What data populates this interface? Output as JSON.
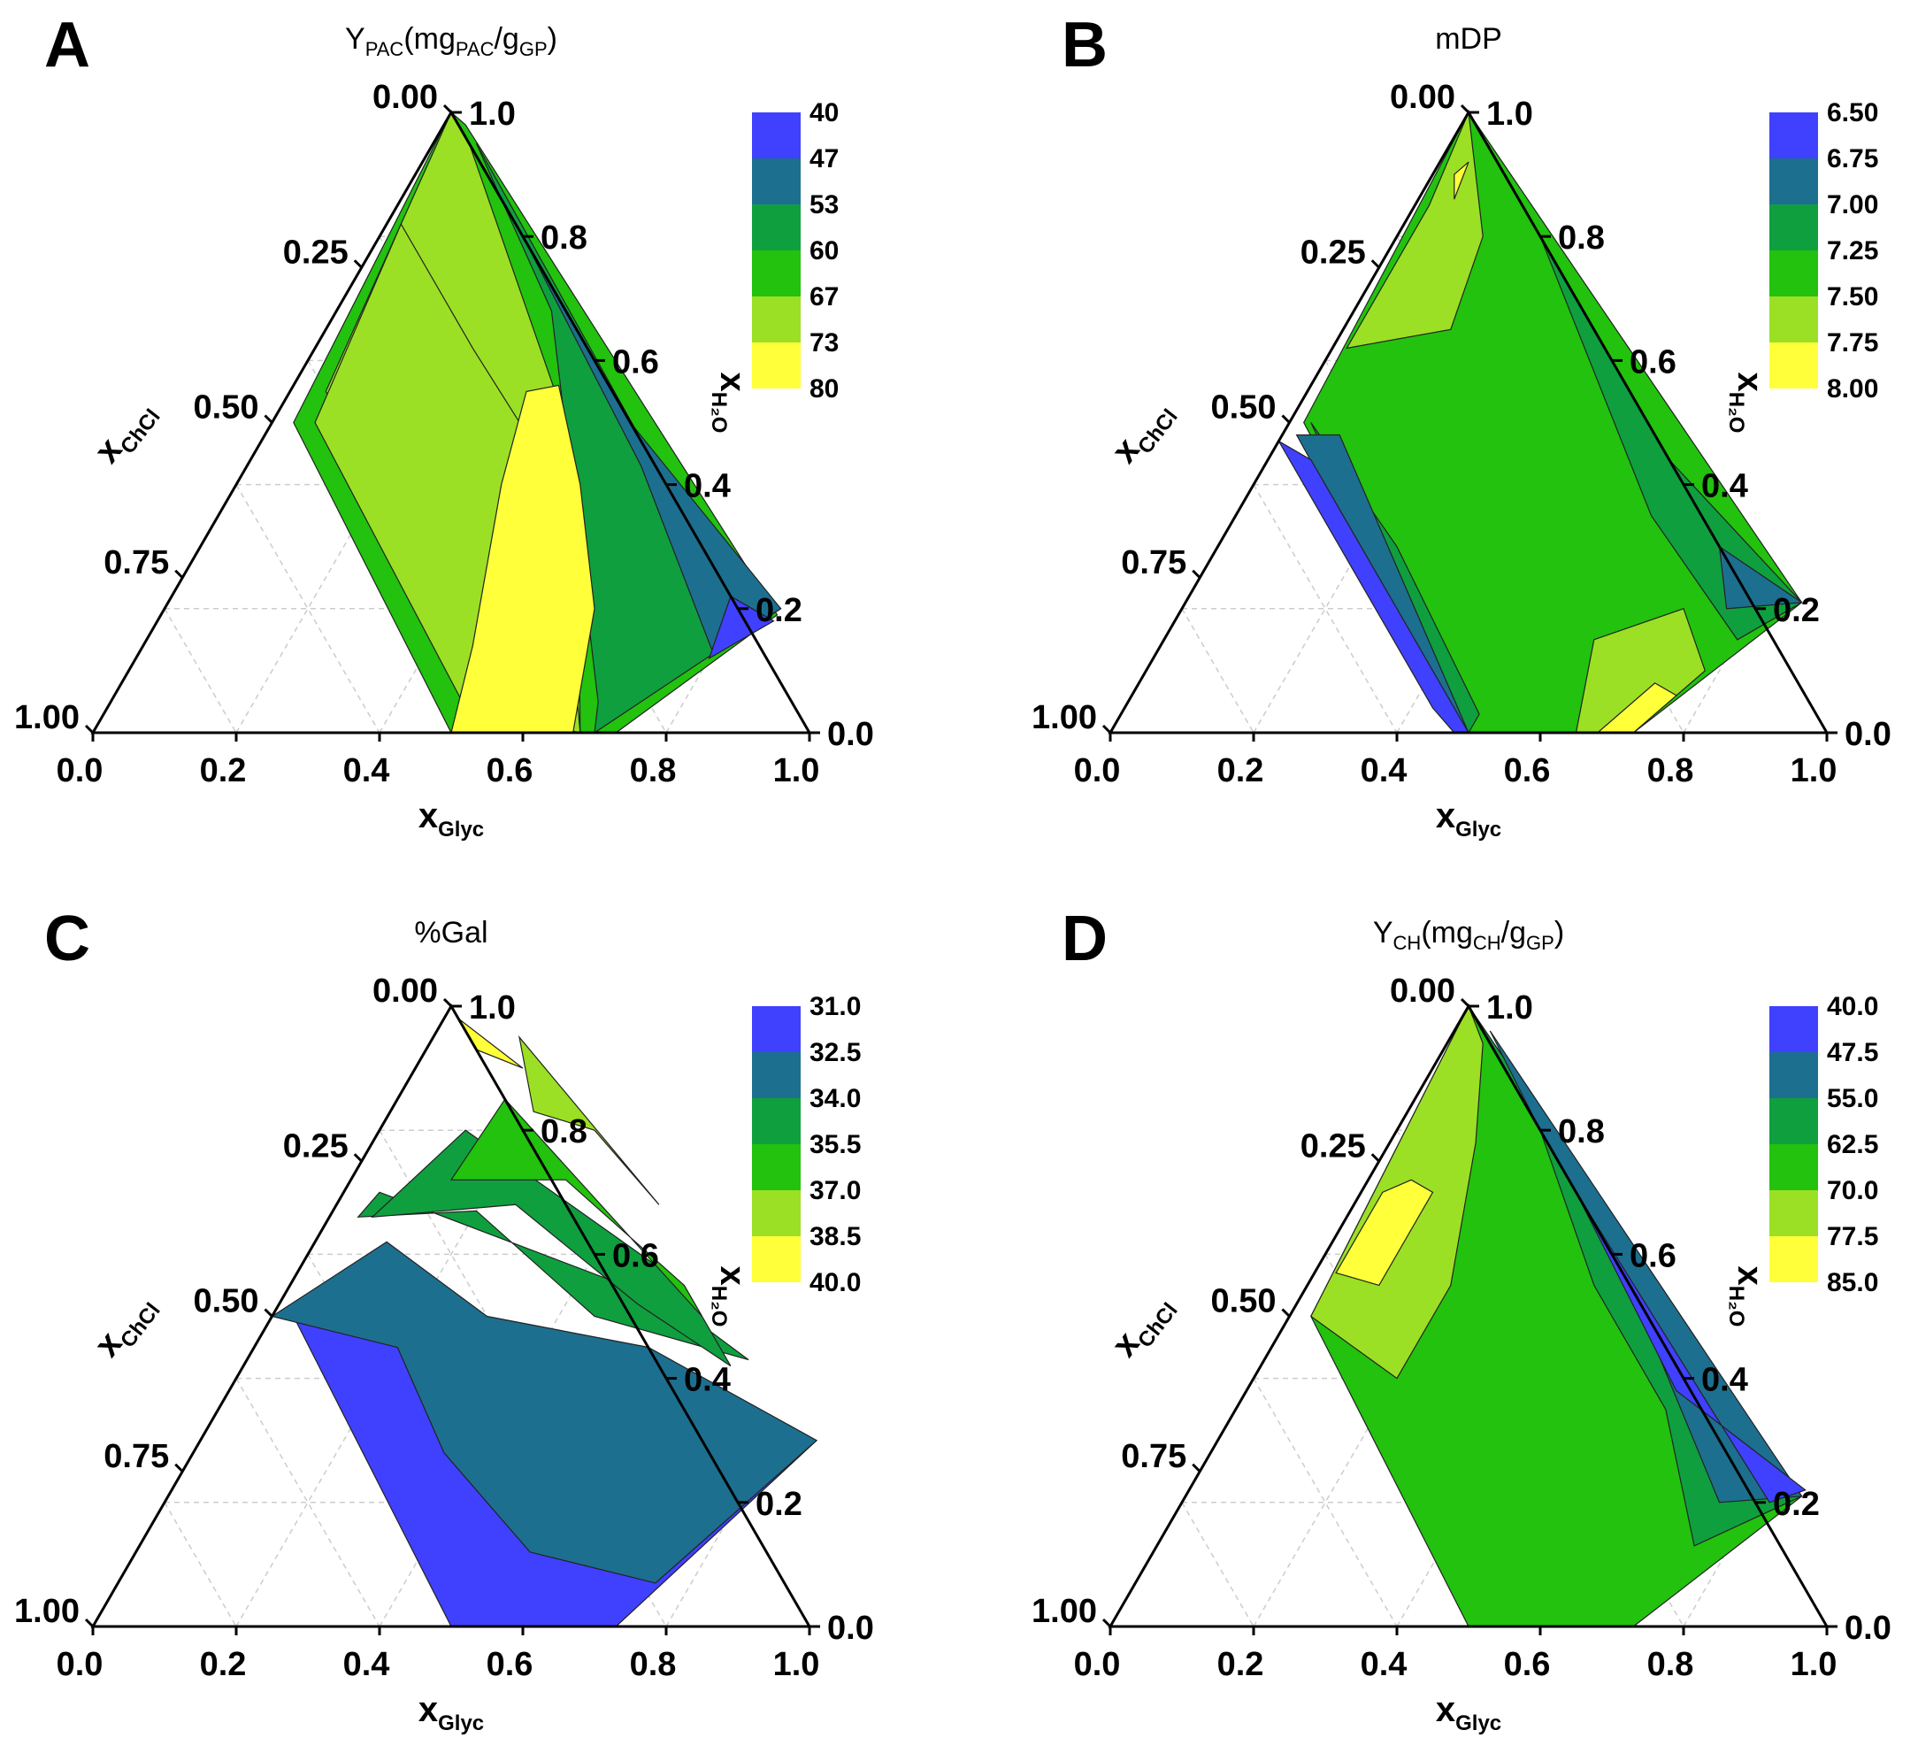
{
  "figure": {
    "panels": [
      {
        "letter": "A",
        "title": {
          "main": "Y",
          "sub": "PAC",
          "rest": "(mg",
          "sub2": "PAC",
          "mid": "/g",
          "sub3": "GP",
          "end": ")"
        },
        "legend": {
          "labels": [
            "40",
            "47",
            "53",
            "60",
            "67",
            "73",
            "80"
          ]
        }
      },
      {
        "letter": "B",
        "title": {
          "main": "mDP",
          "sub": "",
          "rest": "",
          "sub2": "",
          "mid": "",
          "sub3": "",
          "end": ""
        },
        "legend": {
          "labels": [
            "6.50",
            "6.75",
            "7.00",
            "7.25",
            "7.50",
            "7.75",
            "8.00"
          ]
        }
      },
      {
        "letter": "C",
        "title": {
          "main": "%Gal",
          "sub": "",
          "rest": "",
          "sub2": "",
          "mid": "",
          "sub3": "",
          "end": ""
        },
        "legend": {
          "labels": [
            "31.0",
            "32.5",
            "34.0",
            "35.5",
            "37.0",
            "38.5",
            "40.0"
          ]
        }
      },
      {
        "letter": "D",
        "title": {
          "main": "Y",
          "sub": "CH",
          "rest": "(mg",
          "sub2": "CH",
          "mid": "/g",
          "sub3": "GP",
          "end": ")"
        },
        "legend": {
          "labels": [
            "40.0",
            "47.5",
            "55.0",
            "62.5",
            "70.0",
            "77.5",
            "85.0"
          ]
        }
      }
    ],
    "axes": {
      "bottom": {
        "label": "x",
        "sub": "Glyc",
        "ticks": [
          "0.0",
          "0.2",
          "0.4",
          "0.6",
          "0.8",
          "1.0"
        ]
      },
      "left": {
        "label": "x",
        "sub": "ChCl",
        "ticks": [
          "0.00",
          "0.25",
          "0.50",
          "0.75",
          "1.00"
        ]
      },
      "right": {
        "label": "x",
        "sub": "H₂O",
        "ticks": [
          "1.0",
          "0.8",
          "0.6",
          "0.4",
          "0.2",
          "0.0"
        ]
      }
    },
    "colors": {
      "band1": "#4040ff",
      "band2": "#1d6f8f",
      "band3": "#0f9f3f",
      "band4": "#22c20e",
      "band5": "#9be024",
      "band6": "#ffff3a",
      "axis": "#000000",
      "grid": "#cccccc"
    }
  },
  "chart_data": [
    {
      "type": "ternary-contour",
      "title": "Y_PAC (mg_PAC/g_GP)",
      "components": [
        "x_Glyc",
        "x_ChCl",
        "x_H2O"
      ],
      "levels": [
        40,
        47,
        53,
        60,
        67,
        73,
        80
      ],
      "domain": "x_H2O 0.0-1.0, x_Glyc 0.5-0.73 at x_H2O=0",
      "region_note": "maximum (>73) band centred near x_Glyc 0.5-0.6 low water; values fall toward high x_H2O / high x_Glyc edge (<47)"
    },
    {
      "type": "ternary-contour",
      "title": "mDP",
      "components": [
        "x_Glyc",
        "x_ChCl",
        "x_H2O"
      ],
      "levels": [
        6.5,
        6.75,
        7.0,
        7.25,
        7.5,
        7.75,
        8.0
      ],
      "region_note": "saddle: low (<6.75) along ChCl-rich side, high (>7.75) near x_Glyc 0.7 low water and near x_ChCl 0.2 high water"
    },
    {
      "type": "ternary-contour",
      "title": "%Gal",
      "components": [
        "x_Glyc",
        "x_ChCl",
        "x_H2O"
      ],
      "levels": [
        31.0,
        32.5,
        34.0,
        35.5,
        37.0,
        38.5,
        40.0
      ],
      "region_note": "highest (>38.5) near x_H2O 0.9-1.0; decreasing monotonically toward low water (<32.5)"
    },
    {
      "type": "ternary-contour",
      "title": "Y_CH (mg_CH/g_GP)",
      "components": [
        "x_Glyc",
        "x_ChCl",
        "x_H2O"
      ],
      "levels": [
        40.0,
        47.5,
        55.0,
        62.5,
        70.0,
        77.5,
        85.0
      ],
      "region_note": "max (>77.5) near x_ChCl 0.35-0.45 mid water; min (<47.5) along high Glyc/high water edge"
    }
  ]
}
